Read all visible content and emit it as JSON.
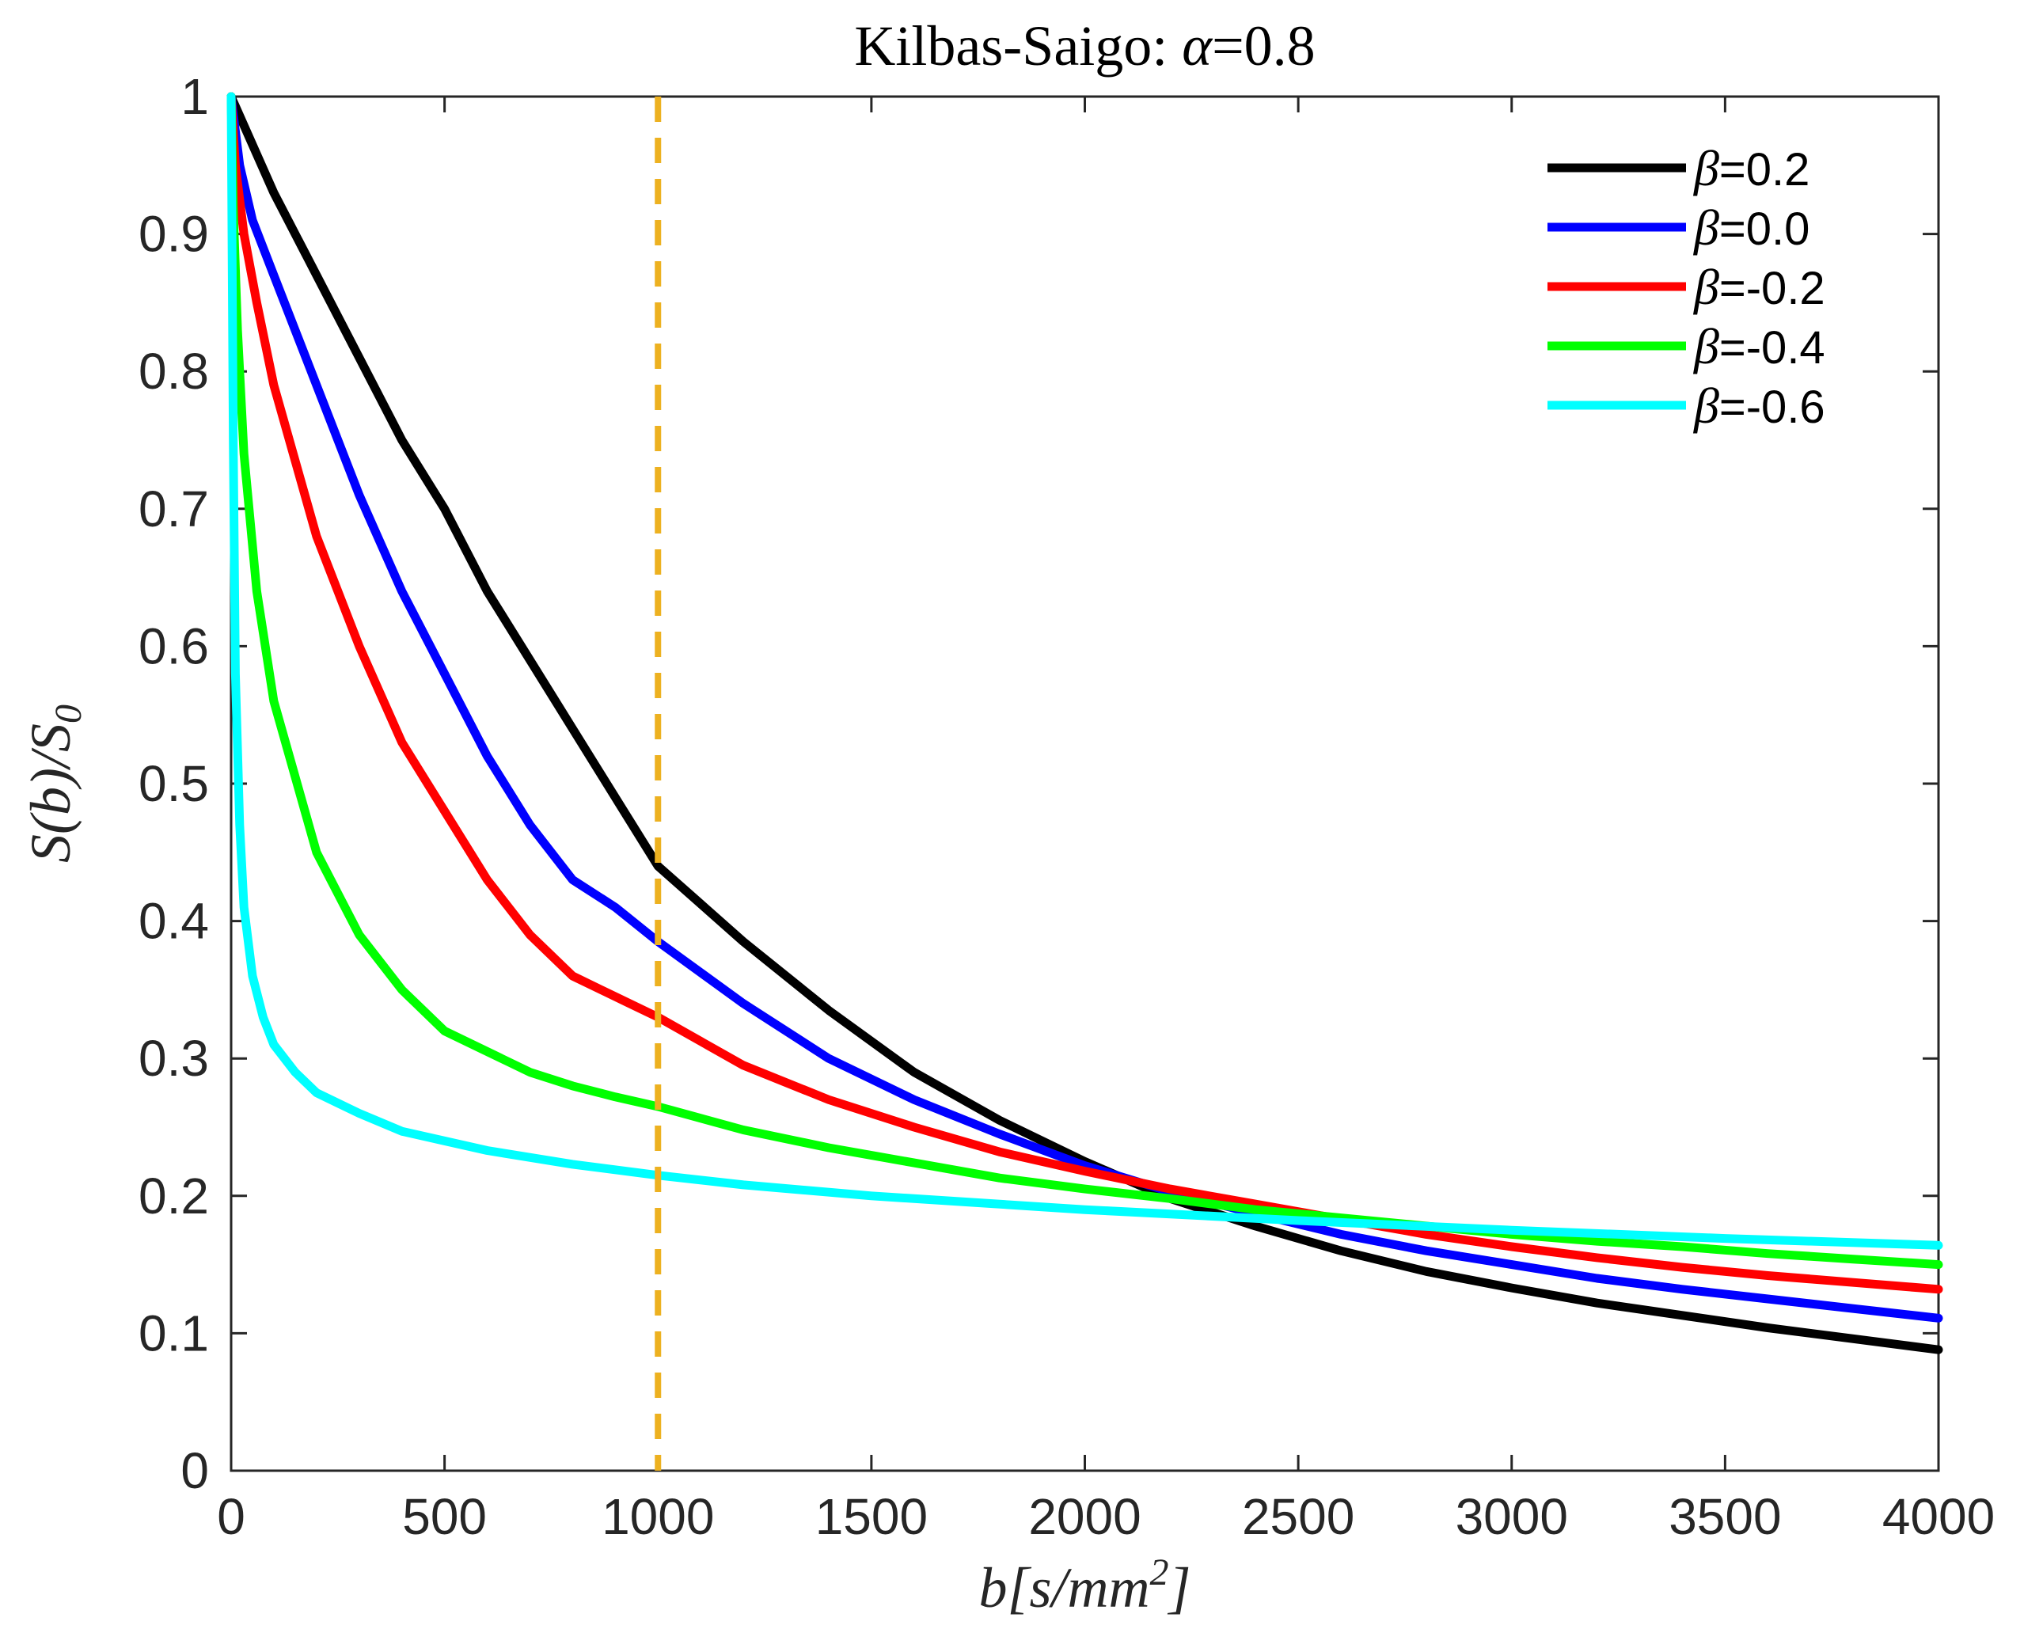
{
  "chart_data": {
    "type": "line",
    "title_prefix": "Kilbas-Saigo:  ",
    "title_symbol": "α",
    "title_suffix": "=0.8",
    "xlabel_main": "b",
    "xlabel_unit": "[s/mm",
    "xlabel_sup": "2",
    "xlabel_close": "]",
    "ylabel": "S(b)/S",
    "ylabel_sub": "0",
    "xlim": [
      0,
      4000
    ],
    "ylim": [
      0,
      1
    ],
    "xticks": [
      "0",
      "500",
      "1000",
      "1500",
      "2000",
      "2500",
      "3000",
      "3500",
      "4000"
    ],
    "yticks": [
      "0",
      "0.1",
      "0.2",
      "0.3",
      "0.4",
      "0.5",
      "0.6",
      "0.7",
      "0.8",
      "0.9",
      "1"
    ],
    "reference_line": {
      "x": 1000,
      "color": "#EDB120",
      "style": "dashed"
    },
    "legend_position": "top-right",
    "series": [
      {
        "name": "β=0.2",
        "symbol": "β",
        "value": "=0.2",
        "color": "#000000",
        "x": [
          0,
          100,
          200,
          300,
          400,
          500,
          600,
          700,
          800,
          900,
          1000,
          1200,
          1400,
          1600,
          1800,
          2000,
          2200,
          2400,
          2600,
          2800,
          3000,
          3200,
          3400,
          3600,
          3800,
          4000
        ],
        "y": [
          1.0,
          0.93,
          0.87,
          0.81,
          0.75,
          0.7,
          0.64,
          0.59,
          0.54,
          0.49,
          0.44,
          0.385,
          0.335,
          0.29,
          0.255,
          0.225,
          0.198,
          0.178,
          0.16,
          0.145,
          0.133,
          0.122,
          0.113,
          0.104,
          0.096,
          0.088
        ]
      },
      {
        "name": "β=0.0",
        "symbol": "β",
        "value": "=0.0",
        "color": "#0000FF",
        "x": [
          0,
          20,
          50,
          100,
          200,
          300,
          400,
          500,
          600,
          700,
          800,
          900,
          1000,
          1200,
          1400,
          1600,
          1800,
          2000,
          2200,
          2400,
          2600,
          2800,
          3000,
          3200,
          3400,
          3600,
          3800,
          4000
        ],
        "y": [
          1.0,
          0.95,
          0.91,
          0.87,
          0.79,
          0.71,
          0.64,
          0.58,
          0.52,
          0.47,
          0.43,
          0.41,
          0.385,
          0.34,
          0.3,
          0.27,
          0.245,
          0.222,
          0.203,
          0.187,
          0.172,
          0.16,
          0.15,
          0.14,
          0.132,
          0.125,
          0.118,
          0.111
        ]
      },
      {
        "name": "β=-0.2",
        "symbol": "β",
        "value": "=-0.2",
        "color": "#FF0000",
        "x": [
          0,
          10,
          30,
          60,
          100,
          200,
          300,
          400,
          500,
          600,
          700,
          800,
          900,
          1000,
          1200,
          1400,
          1600,
          1800,
          2000,
          2200,
          2400,
          2600,
          2800,
          3000,
          3200,
          3400,
          3600,
          3800,
          4000
        ],
        "y": [
          1.0,
          0.95,
          0.9,
          0.85,
          0.79,
          0.68,
          0.6,
          0.53,
          0.48,
          0.43,
          0.39,
          0.36,
          0.345,
          0.33,
          0.295,
          0.27,
          0.25,
          0.232,
          0.218,
          0.205,
          0.194,
          0.183,
          0.172,
          0.163,
          0.155,
          0.148,
          0.142,
          0.137,
          0.132
        ]
      },
      {
        "name": "β=-0.4",
        "symbol": "β",
        "value": "=-0.4",
        "color": "#00FF00",
        "x": [
          0,
          5,
          15,
          30,
          60,
          100,
          200,
          300,
          400,
          500,
          600,
          700,
          800,
          900,
          1000,
          1200,
          1400,
          1600,
          1800,
          2000,
          2200,
          2400,
          2600,
          2800,
          3000,
          3200,
          3400,
          3600,
          3800,
          4000
        ],
        "y": [
          1.0,
          0.92,
          0.83,
          0.74,
          0.64,
          0.56,
          0.45,
          0.39,
          0.35,
          0.32,
          0.305,
          0.29,
          0.28,
          0.272,
          0.265,
          0.248,
          0.235,
          0.224,
          0.213,
          0.205,
          0.198,
          0.19,
          0.184,
          0.178,
          0.172,
          0.167,
          0.163,
          0.158,
          0.154,
          0.15
        ]
      },
      {
        "name": "β=-0.6",
        "symbol": "β",
        "value": "=-0.6",
        "color": "#00FFFF",
        "x": [
          0,
          5,
          10,
          20,
          30,
          50,
          75,
          100,
          150,
          200,
          300,
          400,
          500,
          600,
          800,
          1000,
          1200,
          1500,
          2000,
          2500,
          3000,
          3500,
          4000
        ],
        "y": [
          1.0,
          0.75,
          0.58,
          0.47,
          0.41,
          0.36,
          0.33,
          0.31,
          0.29,
          0.275,
          0.26,
          0.247,
          0.24,
          0.233,
          0.223,
          0.215,
          0.208,
          0.2,
          0.19,
          0.182,
          0.175,
          0.169,
          0.164
        ]
      }
    ]
  }
}
